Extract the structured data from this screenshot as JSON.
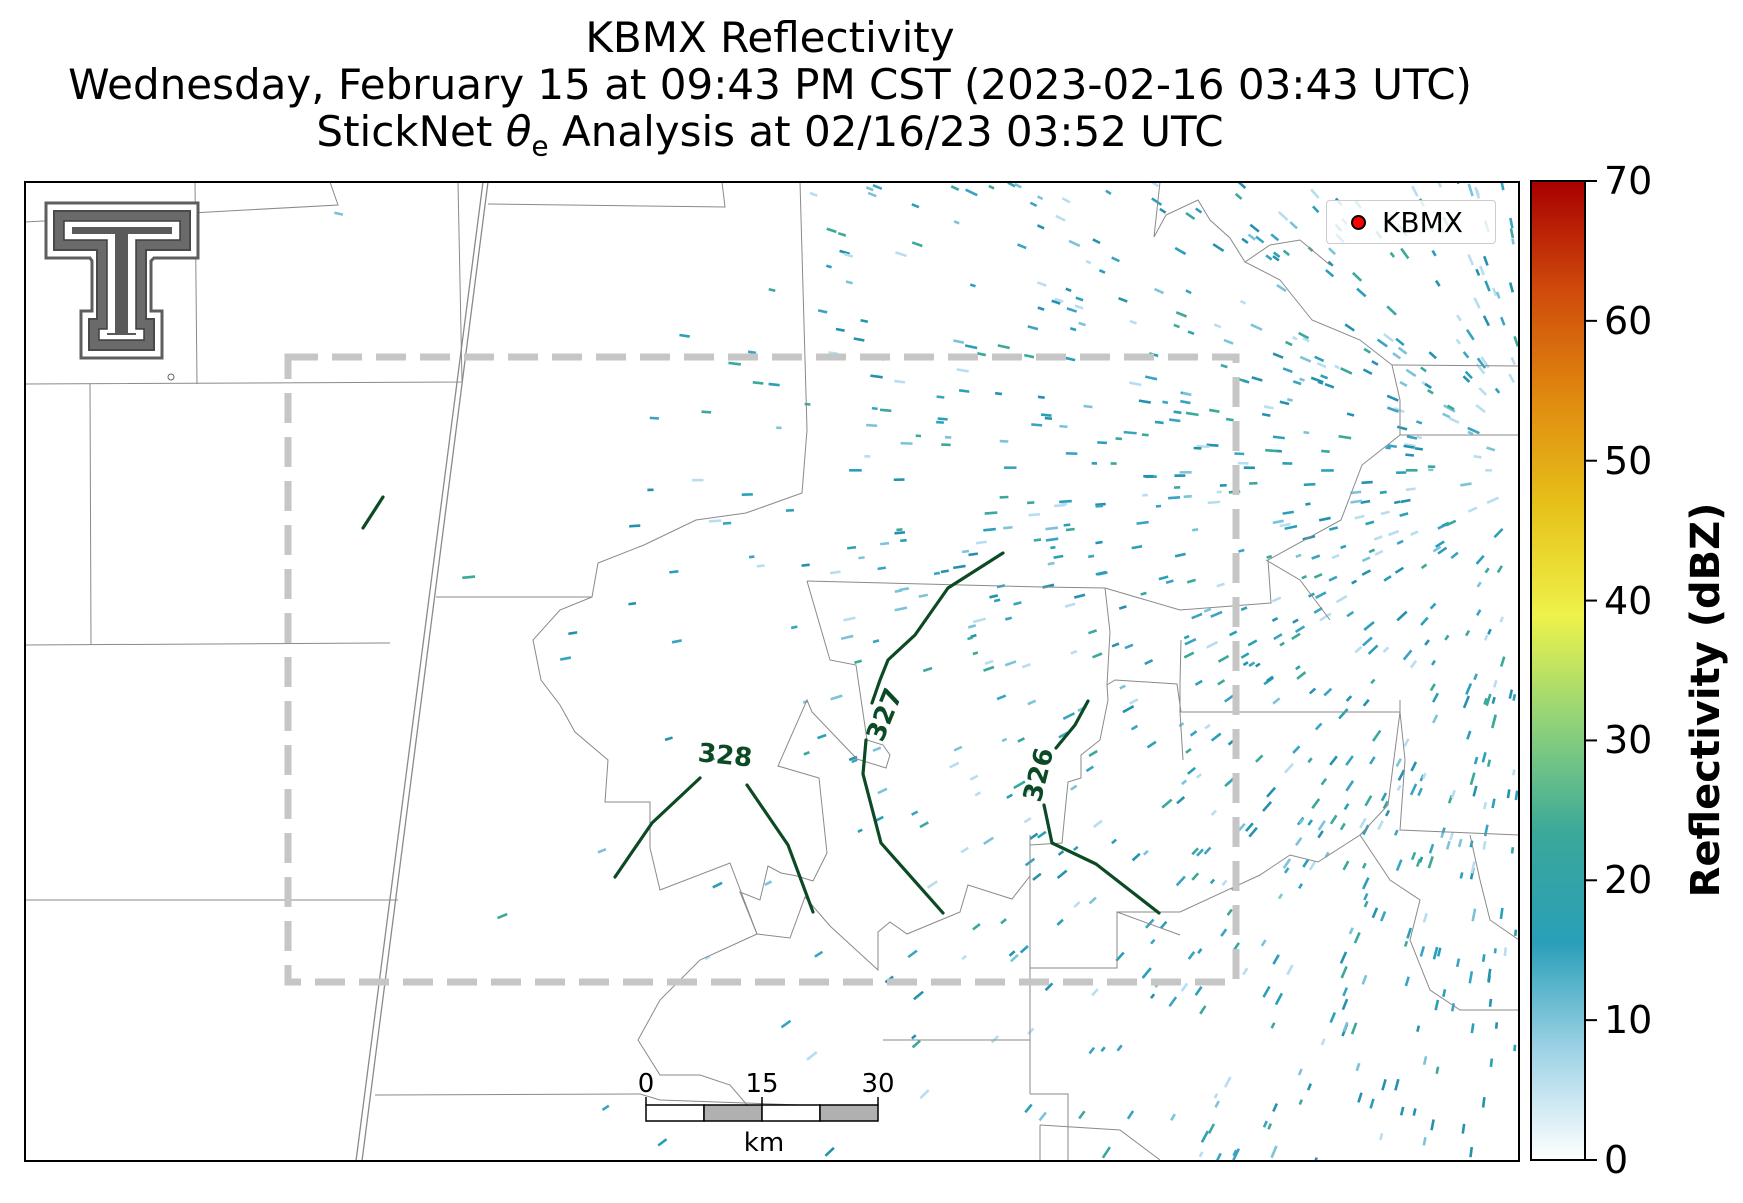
{
  "title": {
    "line1": "KBMX Reflectivity",
    "line2": "Wednesday, February 15 at 09:43 PM CST (2023-02-16 03:43 UTC)",
    "line3_prefix": "StickNet ",
    "line3_theta": "θ",
    "line3_sub": "e",
    "line3_suffix": " Analysis at 02/16/23 03:52 UTC"
  },
  "legend": {
    "label": "KBMX",
    "marker_color": "#ff0000"
  },
  "colorbar": {
    "title": "Reflectivity (dBZ)",
    "ticks": [
      "0",
      "10",
      "20",
      "30",
      "40",
      "50",
      "60",
      "70"
    ],
    "min": 0,
    "max": 70,
    "colors": [
      "#ffffff",
      "#9fd3e6",
      "#2a9fb8",
      "#3aa89a",
      "#8ed27a",
      "#eef24a",
      "#e6c21a",
      "#e08a0f",
      "#cf4a0c",
      "#a80000"
    ]
  },
  "contours": {
    "labels": [
      "328",
      "327",
      "326"
    ],
    "color": "#0b4a24"
  },
  "scale_bar": {
    "labels": [
      "0",
      "15",
      "30"
    ],
    "unit": "km"
  },
  "logo": {
    "name": "Texas Tech Double T"
  }
}
